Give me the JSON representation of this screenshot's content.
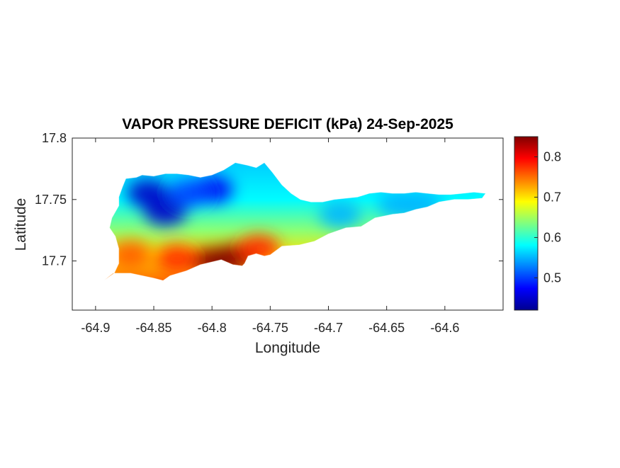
{
  "chart_data": {
    "type": "heatmap",
    "title": "VAPOR PRESSURE DEFICIT (kPa) 24-Sep-2025",
    "xlabel": "Longitude",
    "ylabel": "Latitude",
    "xlim": [
      -64.92,
      -64.55
    ],
    "ylim": [
      17.66,
      17.8
    ],
    "x_ticks": [
      -64.9,
      -64.85,
      -64.8,
      -64.75,
      -64.7,
      -64.65,
      -64.6
    ],
    "x_tick_labels": [
      "-64.9",
      "-64.85",
      "-64.8",
      "-64.75",
      "-64.7",
      "-64.65",
      "-64.6"
    ],
    "y_ticks": [
      17.7,
      17.75,
      17.8
    ],
    "y_tick_labels": [
      "17.7",
      "17.75",
      "17.8"
    ],
    "colormap": "jet",
    "colorbar": {
      "min": 0.42,
      "max": 0.85,
      "ticks": [
        0.5,
        0.6,
        0.7,
        0.8
      ],
      "tick_labels": [
        "0.5",
        "0.6",
        "0.7",
        "0.8"
      ],
      "placement": "right"
    },
    "grid": false,
    "island_outline": [
      [
        -64.9,
        17.68
      ],
      [
        -64.893,
        17.684
      ],
      [
        -64.884,
        17.69
      ],
      [
        -64.88,
        17.698
      ],
      [
        -64.88,
        17.71
      ],
      [
        -64.883,
        17.72
      ],
      [
        -64.888,
        17.727
      ],
      [
        -64.886,
        17.735
      ],
      [
        -64.88,
        17.745
      ],
      [
        -64.88,
        17.752
      ],
      [
        -64.877,
        17.76
      ],
      [
        -64.874,
        17.767
      ],
      [
        -64.865,
        17.768
      ],
      [
        -64.86,
        17.77
      ],
      [
        -64.85,
        17.769
      ],
      [
        -64.84,
        17.771
      ],
      [
        -64.83,
        17.771
      ],
      [
        -64.82,
        17.77
      ],
      [
        -64.81,
        17.768
      ],
      [
        -64.8,
        17.77
      ],
      [
        -64.79,
        17.774
      ],
      [
        -64.78,
        17.78
      ],
      [
        -64.77,
        17.778
      ],
      [
        -64.762,
        17.776
      ],
      [
        -64.755,
        17.78
      ],
      [
        -64.748,
        17.772
      ],
      [
        -64.74,
        17.762
      ],
      [
        -64.732,
        17.755
      ],
      [
        -64.724,
        17.75
      ],
      [
        -64.715,
        17.748
      ],
      [
        -64.705,
        17.748
      ],
      [
        -64.695,
        17.75
      ],
      [
        -64.685,
        17.751
      ],
      [
        -64.675,
        17.752
      ],
      [
        -64.665,
        17.755
      ],
      [
        -64.655,
        17.756
      ],
      [
        -64.645,
        17.755
      ],
      [
        -64.635,
        17.755
      ],
      [
        -64.625,
        17.756
      ],
      [
        -64.615,
        17.755
      ],
      [
        -64.605,
        17.754
      ],
      [
        -64.595,
        17.754
      ],
      [
        -64.585,
        17.755
      ],
      [
        -64.575,
        17.756
      ],
      [
        -64.565,
        17.755
      ],
      [
        -64.568,
        17.751
      ],
      [
        -64.58,
        17.75
      ],
      [
        -64.592,
        17.75
      ],
      [
        -64.605,
        17.748
      ],
      [
        -64.615,
        17.744
      ],
      [
        -64.625,
        17.742
      ],
      [
        -64.635,
        17.739
      ],
      [
        -64.645,
        17.738
      ],
      [
        -64.66,
        17.735
      ],
      [
        -64.672,
        17.728
      ],
      [
        -64.685,
        17.727
      ],
      [
        -64.7,
        17.722
      ],
      [
        -64.712,
        17.716
      ],
      [
        -64.725,
        17.713
      ],
      [
        -64.74,
        17.712
      ],
      [
        -64.75,
        17.705
      ],
      [
        -64.755,
        17.704
      ],
      [
        -64.762,
        17.706
      ],
      [
        -64.769,
        17.704
      ],
      [
        -64.772,
        17.698
      ],
      [
        -64.774,
        17.696
      ],
      [
        -64.782,
        17.697
      ],
      [
        -64.792,
        17.701
      ],
      [
        -64.81,
        17.697
      ],
      [
        -64.822,
        17.692
      ],
      [
        -64.836,
        17.688
      ],
      [
        -64.842,
        17.684
      ],
      [
        -64.85,
        17.686
      ],
      [
        -64.87,
        17.69
      ],
      [
        -64.885,
        17.69
      ],
      [
        -64.893,
        17.684
      ],
      [
        -64.9,
        17.68
      ]
    ],
    "hot_spots": [
      {
        "lon": -64.8,
        "lat": 17.7,
        "value": 0.85
      },
      {
        "lon": -64.78,
        "lat": 17.703,
        "value": 0.85
      },
      {
        "lon": -64.76,
        "lat": 17.71,
        "value": 0.78
      },
      {
        "lon": -64.83,
        "lat": 17.702,
        "value": 0.78
      },
      {
        "lon": -64.87,
        "lat": 17.705,
        "value": 0.76
      },
      {
        "lon": -64.84,
        "lat": 17.74,
        "value": 0.45
      },
      {
        "lon": -64.855,
        "lat": 17.755,
        "value": 0.45
      },
      {
        "lon": -64.8,
        "lat": 17.758,
        "value": 0.47
      },
      {
        "lon": -64.82,
        "lat": 17.755,
        "value": 0.5
      },
      {
        "lon": -64.69,
        "lat": 17.738,
        "value": 0.55
      },
      {
        "lon": -64.64,
        "lat": 17.746,
        "value": 0.55
      },
      {
        "lon": -64.62,
        "lat": 17.746,
        "value": 0.55
      }
    ]
  }
}
